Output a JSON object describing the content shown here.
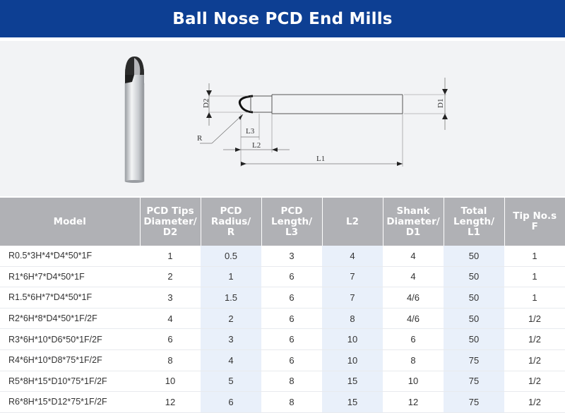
{
  "title": "Ball Nose PCD End Mills",
  "diagram": {
    "labels": {
      "d2": "D2",
      "d1": "D1",
      "r": "R",
      "l3": "L3",
      "l2": "L2",
      "l1": "L1"
    }
  },
  "table": {
    "headers": [
      [
        "Model"
      ],
      [
        "PCD Tips",
        "Diameter/",
        "D2"
      ],
      [
        "PCD",
        "Radius/",
        "R"
      ],
      [
        "PCD",
        "Length/",
        "L3"
      ],
      [
        "L2"
      ],
      [
        "Shank",
        "Diameter/",
        "D1"
      ],
      [
        "Total",
        "Length/",
        "L1"
      ],
      [
        "Tip No.s",
        "F"
      ]
    ],
    "rows": [
      [
        "R0.5*3H*4*D4*50*1F",
        "1",
        "0.5",
        "3",
        "4",
        "4",
        "50",
        "1"
      ],
      [
        "R1*6H*7*D4*50*1F",
        "2",
        "1",
        "6",
        "7",
        "4",
        "50",
        "1"
      ],
      [
        "R1.5*6H*7*D4*50*1F",
        "3",
        "1.5",
        "6",
        "7",
        "4/6",
        "50",
        "1"
      ],
      [
        "R2*6H*8*D4*50*1F/2F",
        "4",
        "2",
        "6",
        "8",
        "4/6",
        "50",
        "1/2"
      ],
      [
        "R3*6H*10*D6*50*1F/2F",
        "6",
        "3",
        "6",
        "10",
        "6",
        "50",
        "1/2"
      ],
      [
        "R4*6H*10*D8*75*1F/2F",
        "8",
        "4",
        "6",
        "10",
        "8",
        "75",
        "1/2"
      ],
      [
        "R5*8H*15*D10*75*1F/2F",
        "10",
        "5",
        "8",
        "15",
        "10",
        "75",
        "1/2"
      ],
      [
        "R6*8H*15*D12*75*1F/2F",
        "12",
        "6",
        "8",
        "15",
        "12",
        "75",
        "1/2"
      ]
    ]
  },
  "colors": {
    "header_bg": "#0d3f93",
    "table_header_bg": "#b0b1b5",
    "column_tint": "#e9f0fa",
    "drawing_bg": "#f2f3f5"
  }
}
